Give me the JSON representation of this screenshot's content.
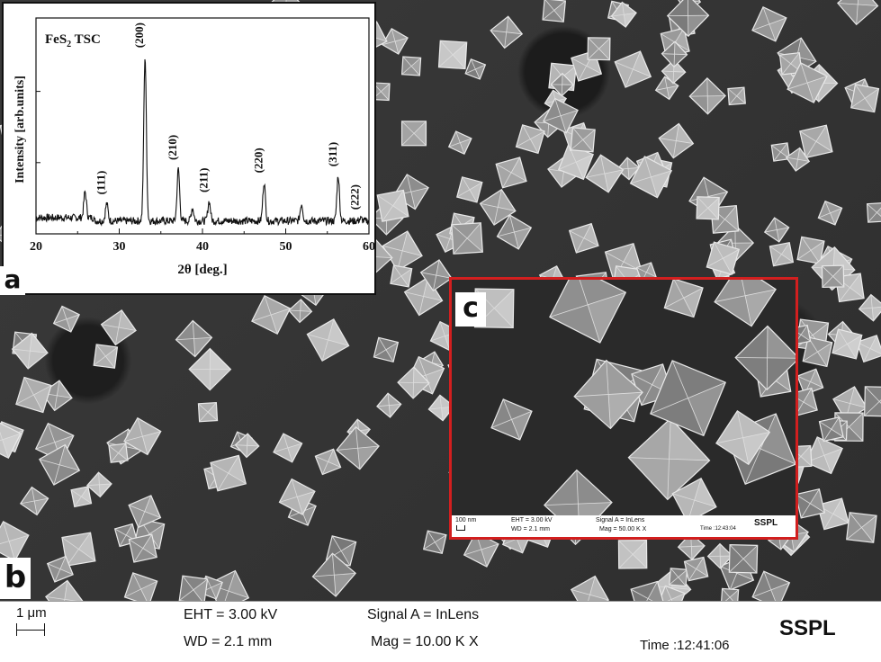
{
  "panels": {
    "a": "a",
    "b": "b",
    "c": "c"
  },
  "xrd": {
    "sample_label": "FeS",
    "sample_sub": "2",
    "sample_suffix": " TSC",
    "xlabel": "2θ [deg.]",
    "ylabel": "Intensity [arb.units]",
    "chart_data": {
      "type": "line",
      "title": "FeS2 TSC",
      "xlabel": "2θ [deg.]",
      "ylabel": "Intensity [arb.units]",
      "xlim": [
        20,
        60
      ],
      "x_ticks": [
        20,
        30,
        40,
        50,
        60
      ],
      "y_ticks_shown": false,
      "peaks": [
        {
          "x": 25.9,
          "y": 0.18,
          "label": ""
        },
        {
          "x": 28.5,
          "y": 0.14,
          "label": "(111)"
        },
        {
          "x": 33.1,
          "y": 0.82,
          "label": "(200)"
        },
        {
          "x": 37.1,
          "y": 0.3,
          "label": "(210)"
        },
        {
          "x": 38.8,
          "y": 0.12,
          "label": ""
        },
        {
          "x": 40.8,
          "y": 0.15,
          "label": "(211)"
        },
        {
          "x": 47.4,
          "y": 0.24,
          "label": "(220)"
        },
        {
          "x": 51.9,
          "y": 0.14,
          "label": ""
        },
        {
          "x": 56.3,
          "y": 0.27,
          "label": "(311)"
        },
        {
          "x": 59.0,
          "y": 0.07,
          "label": "(222)"
        }
      ],
      "baseline": 0.06
    }
  },
  "inset_c": {
    "scale_len": "100 nm",
    "eht": "EHT = 3.00 kV",
    "wd": "WD = 2.1 mm",
    "signal": "Signal A = InLens",
    "mag": "Mag = 50.00 K X",
    "time": "Time :12:43:04",
    "lab": "SSPL"
  },
  "info": {
    "scale_len": "1 μm",
    "eht": "EHT =  3.00 kV",
    "wd": "WD =  2.1 mm",
    "signal": "Signal A = InLens",
    "mag": "Mag =  10.00 K X",
    "time": "Time :12:41:06",
    "lab": "SSPL"
  }
}
